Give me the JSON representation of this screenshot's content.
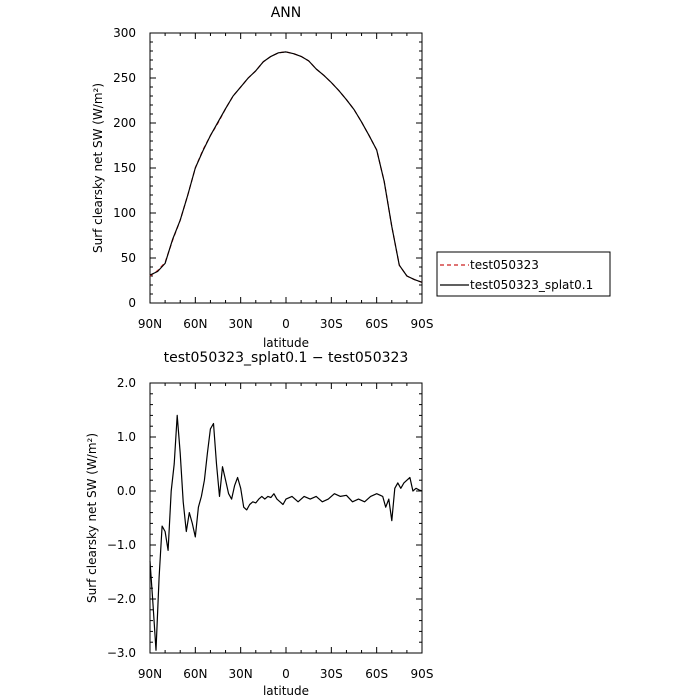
{
  "chart_data": [
    {
      "type": "line",
      "title": "ANN",
      "xlabel": "latitude",
      "ylabel": "Surf clearsky net SW (W/m²)",
      "x_ticks": [
        "90N",
        "60N",
        "30N",
        "0",
        "30S",
        "60S",
        "90S"
      ],
      "x_tick_values": [
        90,
        60,
        30,
        0,
        -30,
        -60,
        -90
      ],
      "xlim": [
        90,
        -90
      ],
      "ylim": [
        0,
        300
      ],
      "y_ticks": [
        "0",
        "50",
        "100",
        "150",
        "200",
        "250",
        "300"
      ],
      "y_tick_values": [
        0,
        50,
        100,
        150,
        200,
        250,
        300
      ],
      "legend_position": "right",
      "series": [
        {
          "name": "test050323",
          "color": "#cc2222",
          "dash": "dashed",
          "points": [
            [
              90,
              30
            ],
            [
              85,
              36
            ],
            [
              80,
              45
            ],
            [
              75,
              70
            ],
            [
              70,
              92
            ],
            [
              65,
              120
            ],
            [
              60,
              150
            ],
            [
              55,
              170
            ],
            [
              50,
              186
            ],
            [
              45,
              200
            ],
            [
              40,
              216
            ],
            [
              35,
              230
            ],
            [
              30,
              240
            ],
            [
              25,
              250
            ],
            [
              20,
              258
            ],
            [
              15,
              268
            ],
            [
              10,
              274
            ],
            [
              5,
              278
            ],
            [
              0,
              279
            ],
            [
              -5,
              277
            ],
            [
              -10,
              274
            ],
            [
              -15,
              269
            ],
            [
              -20,
              260
            ],
            [
              -25,
              253
            ],
            [
              -30,
              245
            ],
            [
              -35,
              236
            ],
            [
              -40,
              226
            ],
            [
              -45,
              215
            ],
            [
              -50,
              201
            ],
            [
              -55,
              186
            ],
            [
              -60,
              170
            ],
            [
              -65,
              135
            ],
            [
              -70,
              85
            ],
            [
              -75,
              42
            ],
            [
              -80,
              30
            ],
            [
              -85,
              26
            ],
            [
              -90,
              23
            ]
          ]
        },
        {
          "name": "test050323_splat0.1",
          "color": "#000000",
          "dash": "solid",
          "points": [
            [
              90,
              31
            ],
            [
              85,
              35
            ],
            [
              80,
              44
            ],
            [
              75,
              71
            ],
            [
              70,
              92
            ],
            [
              65,
              120
            ],
            [
              60,
              150
            ],
            [
              55,
              169
            ],
            [
              50,
              186
            ],
            [
              45,
              201
            ],
            [
              40,
              216
            ],
            [
              35,
              230
            ],
            [
              30,
              240
            ],
            [
              25,
              250
            ],
            [
              20,
              258
            ],
            [
              15,
              268
            ],
            [
              10,
              274
            ],
            [
              5,
              278
            ],
            [
              0,
              279
            ],
            [
              -5,
              277
            ],
            [
              -10,
              274
            ],
            [
              -15,
              269
            ],
            [
              -20,
              260
            ],
            [
              -25,
              253
            ],
            [
              -30,
              245
            ],
            [
              -35,
              236
            ],
            [
              -40,
              226
            ],
            [
              -45,
              215
            ],
            [
              -50,
              201
            ],
            [
              -55,
              186
            ],
            [
              -60,
              170
            ],
            [
              -65,
              135
            ],
            [
              -70,
              85
            ],
            [
              -75,
              42
            ],
            [
              -80,
              30
            ],
            [
              -85,
              26
            ],
            [
              -90,
              23
            ]
          ]
        }
      ]
    },
    {
      "type": "line",
      "title": "test050323_splat0.1 − test050323",
      "xlabel": "latitude",
      "ylabel": "Surf clearsky net SW (W/m²)",
      "x_ticks": [
        "90N",
        "60N",
        "30N",
        "0",
        "30S",
        "60S",
        "90S"
      ],
      "x_tick_values": [
        90,
        60,
        30,
        0,
        -30,
        -60,
        -90
      ],
      "xlim": [
        90,
        -90
      ],
      "ylim": [
        -3,
        2
      ],
      "y_ticks": [
        "−3.0",
        "−2.0",
        "−1.0",
        "0.0",
        "1.0",
        "2.0"
      ],
      "y_tick_values": [
        -3,
        -2,
        -1,
        0,
        1,
        2
      ],
      "series": [
        {
          "name": "",
          "color": "#000000",
          "dash": "solid",
          "points": [
            [
              90,
              -1.3
            ],
            [
              88,
              -2.1
            ],
            [
              86,
              -2.95
            ],
            [
              84,
              -1.6
            ],
            [
              82,
              -0.65
            ],
            [
              80,
              -0.75
            ],
            [
              78,
              -1.1
            ],
            [
              76,
              0.0
            ],
            [
              74,
              0.5
            ],
            [
              72,
              1.4
            ],
            [
              70,
              0.7
            ],
            [
              68,
              -0.2
            ],
            [
              66,
              -0.75
            ],
            [
              64,
              -0.4
            ],
            [
              62,
              -0.6
            ],
            [
              60,
              -0.85
            ],
            [
              58,
              -0.3
            ],
            [
              56,
              -0.1
            ],
            [
              54,
              0.2
            ],
            [
              52,
              0.7
            ],
            [
              50,
              1.15
            ],
            [
              48,
              1.25
            ],
            [
              46,
              0.5
            ],
            [
              44,
              -0.1
            ],
            [
              42,
              0.45
            ],
            [
              40,
              0.2
            ],
            [
              38,
              -0.05
            ],
            [
              36,
              -0.15
            ],
            [
              34,
              0.1
            ],
            [
              32,
              0.25
            ],
            [
              30,
              0.05
            ],
            [
              28,
              -0.3
            ],
            [
              26,
              -0.35
            ],
            [
              24,
              -0.25
            ],
            [
              22,
              -0.2
            ],
            [
              20,
              -0.22
            ],
            [
              18,
              -0.15
            ],
            [
              16,
              -0.1
            ],
            [
              14,
              -0.15
            ],
            [
              12,
              -0.1
            ],
            [
              10,
              -0.12
            ],
            [
              8,
              -0.05
            ],
            [
              6,
              -0.15
            ],
            [
              4,
              -0.2
            ],
            [
              2,
              -0.25
            ],
            [
              0,
              -0.15
            ],
            [
              -4,
              -0.1
            ],
            [
              -8,
              -0.2
            ],
            [
              -12,
              -0.1
            ],
            [
              -16,
              -0.15
            ],
            [
              -20,
              -0.1
            ],
            [
              -24,
              -0.2
            ],
            [
              -28,
              -0.15
            ],
            [
              -32,
              -0.05
            ],
            [
              -36,
              -0.1
            ],
            [
              -40,
              -0.08
            ],
            [
              -44,
              -0.2
            ],
            [
              -48,
              -0.15
            ],
            [
              -52,
              -0.2
            ],
            [
              -56,
              -0.1
            ],
            [
              -60,
              -0.05
            ],
            [
              -64,
              -0.1
            ],
            [
              -66,
              -0.3
            ],
            [
              -68,
              -0.15
            ],
            [
              -70,
              -0.55
            ],
            [
              -72,
              0.05
            ],
            [
              -74,
              0.15
            ],
            [
              -76,
              0.05
            ],
            [
              -78,
              0.15
            ],
            [
              -80,
              0.2
            ],
            [
              -82,
              0.25
            ],
            [
              -84,
              0.0
            ],
            [
              -86,
              0.05
            ],
            [
              -88,
              0.02
            ],
            [
              -90,
              0.0
            ]
          ]
        }
      ]
    }
  ]
}
